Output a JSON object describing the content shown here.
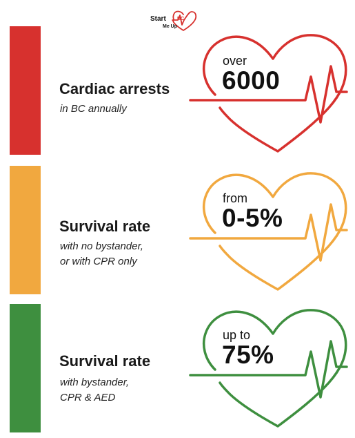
{
  "logo": {
    "start": "Start",
    "bc": "BC",
    "me_up": "Me Up"
  },
  "panels": [
    {
      "color": "#d7312e",
      "title": "Cardiac arrests",
      "subtitle_lines": [
        "in BC annually"
      ],
      "prefix": "over",
      "stat": "6000"
    },
    {
      "color": "#f1a83f",
      "title": "Survival rate",
      "subtitle_lines": [
        "with no bystander,",
        "or with CPR only"
      ],
      "prefix": "from",
      "stat": "0-5%"
    },
    {
      "color": "#3e8f3f",
      "title": "Survival rate",
      "subtitle_lines": [
        "with bystander,",
        "CPR & AED"
      ],
      "prefix": "up to",
      "stat": "75%"
    }
  ]
}
